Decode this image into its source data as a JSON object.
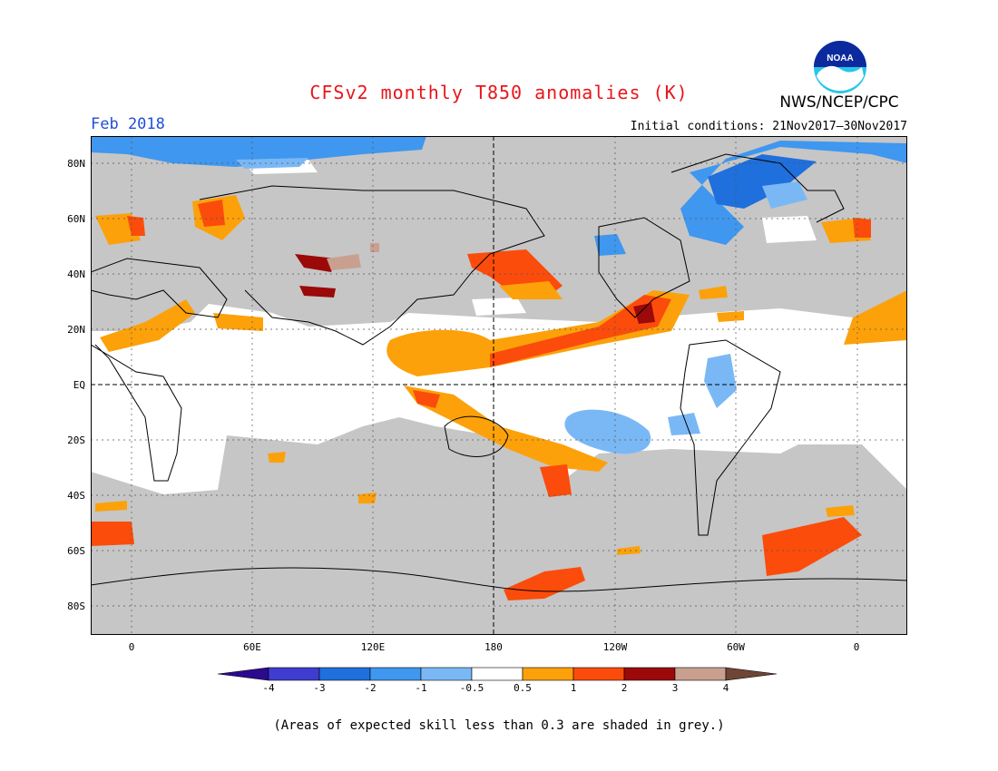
{
  "header": {
    "title": "CFSv2 monthly T850 anomalies (K)",
    "month": "Feb 2018",
    "initial_conditions": "Initial conditions: 21Nov2017–30Nov2017",
    "agency": "NWS/NCEP/CPC",
    "logo_text": "NOAA"
  },
  "axes": {
    "lat_labels": [
      "80N",
      "60N",
      "40N",
      "20N",
      "EQ",
      "20S",
      "40S",
      "60S",
      "80S"
    ],
    "lon_labels": [
      "0",
      "60E",
      "120E",
      "180",
      "120W",
      "60W",
      "0"
    ]
  },
  "colorbar": {
    "labels": [
      "-4",
      "-3",
      "-2",
      "-1",
      "-0.5",
      "0.5",
      "1",
      "2",
      "3",
      "4"
    ],
    "colors": [
      "#2b0a8e",
      "#3f3ccf",
      "#1f6fdc",
      "#3f97ef",
      "#7ab8f5",
      "#ffffff",
      "#fca10a",
      "#fb4c0b",
      "#9b0909",
      "#c9a090",
      "#6e4536"
    ]
  },
  "footer": {
    "note": "(Areas of expected skill less than 0.3 are shaded in grey.)"
  },
  "colors": {
    "grey_skill": "#c6c6c6",
    "title": "#e8161b",
    "month": "#1f4fd6"
  }
}
